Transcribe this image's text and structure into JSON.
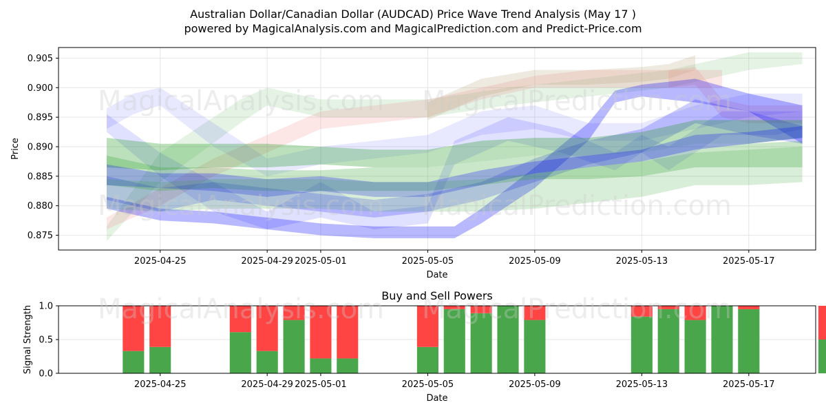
{
  "figure": {
    "title_line1": "Australian Dollar/Canadian Dollar (AUDCAD) Price Wave Trend Analysis (May 17 )",
    "title_line2": "powered by MagicalAnalysis.com and MagicalPrediction.com and Predict-Price.com",
    "watermark_1": "MagicalAnalysis.com",
    "watermark_2": "MagicalPrediction.com"
  },
  "colors": {
    "green": "#2ca02c",
    "blue": "#0000ff",
    "red": "#ff0000",
    "pink": "#f08080",
    "tan": "#b5a070",
    "buy": "#4aa64a",
    "sell": "#ff4444",
    "grid": "#e6e6e6"
  },
  "chart_data": [
    {
      "type": "area",
      "name": "price-wave-chart",
      "xlabel": "Date",
      "ylabel": "Price",
      "x_range_days": [
        -1.8,
        26.5
      ],
      "ylim": [
        0.8725,
        0.9068
      ],
      "x_ticks": [
        {
          "day": 2,
          "label": "2025-04-25"
        },
        {
          "day": 6,
          "label": "2025-04-29"
        },
        {
          "day": 8,
          "label": "2025-05-01"
        },
        {
          "day": 12,
          "label": "2025-05-05"
        },
        {
          "day": 16,
          "label": "2025-05-09"
        },
        {
          "day": 20,
          "label": "2025-05-13"
        },
        {
          "day": 24,
          "label": "2025-05-17"
        }
      ],
      "y_ticks": [
        0.875,
        0.88,
        0.885,
        0.89,
        0.895,
        0.9,
        0.905
      ],
      "grid": true,
      "day0": "2025-04-23",
      "bands": [
        {
          "name": "green-band-upper-light",
          "color": "green",
          "opacity": 0.12,
          "x": [
            0,
            2,
            5,
            6,
            8,
            12,
            15,
            17,
            19,
            21,
            22,
            24,
            26
          ],
          "lower": [
            0.874,
            0.884,
            0.894,
            0.897,
            0.895,
            0.895,
            0.897,
            0.898,
            0.899,
            0.9,
            0.901,
            0.903,
            0.904
          ],
          "upper": [
            0.8765,
            0.889,
            0.898,
            0.9,
            0.898,
            0.898,
            0.9,
            0.901,
            0.902,
            0.903,
            0.904,
            0.906,
            0.906
          ]
        },
        {
          "name": "pink-band",
          "color": "pink",
          "opacity": 0.2,
          "x": [
            0,
            2,
            4,
            6,
            7,
            8,
            10,
            12,
            14,
            16,
            18,
            20,
            22,
            23
          ],
          "lower": [
            0.876,
            0.88,
            0.885,
            0.889,
            0.891,
            0.893,
            0.894,
            0.895,
            0.898,
            0.9,
            0.9,
            0.9,
            0.9,
            0.9
          ],
          "upper": [
            0.878,
            0.883,
            0.888,
            0.892,
            0.894,
            0.896,
            0.897,
            0.898,
            0.9,
            0.902,
            0.903,
            0.903,
            0.903,
            0.903
          ]
        },
        {
          "name": "tan-band",
          "color": "tan",
          "opacity": 0.22,
          "x": [
            12,
            14,
            16,
            18,
            20,
            21,
            22
          ],
          "lower": [
            0.8945,
            0.8985,
            0.9005,
            0.9005,
            0.901,
            0.9015,
            0.903
          ],
          "upper": [
            0.8975,
            0.9015,
            0.903,
            0.903,
            0.9035,
            0.904,
            0.9055
          ]
        },
        {
          "name": "pink-band-tail",
          "color": "pink",
          "opacity": 0.2,
          "x": [
            21,
            22,
            23,
            24,
            25,
            26
          ],
          "lower": [
            0.9,
            0.9005,
            0.895,
            0.894,
            0.894,
            0.894
          ],
          "upper": [
            0.903,
            0.9035,
            0.898,
            0.897,
            0.897,
            0.897
          ]
        },
        {
          "name": "blue-band-light-top",
          "color": "blue",
          "opacity": 0.09,
          "x": [
            0,
            1,
            2,
            4,
            6,
            8,
            10,
            12,
            14,
            16,
            18,
            20,
            22,
            24,
            26
          ],
          "lower": [
            0.893,
            0.8955,
            0.897,
            0.89,
            0.885,
            0.887,
            0.888,
            0.889,
            0.892,
            0.893,
            0.891,
            0.891,
            0.893,
            0.895,
            0.896
          ],
          "upper": [
            0.8965,
            0.899,
            0.9,
            0.894,
            0.888,
            0.89,
            0.891,
            0.892,
            0.896,
            0.897,
            0.894,
            0.894,
            0.897,
            0.899,
            0.899
          ]
        },
        {
          "name": "blue-band-zigzag",
          "color": "blue",
          "opacity": 0.12,
          "x": [
            0,
            2,
            4,
            6,
            8,
            10,
            12,
            13,
            15,
            17,
            19,
            20,
            21,
            23,
            25,
            26
          ],
          "lower": [
            0.8925,
            0.885,
            0.879,
            0.876,
            0.878,
            0.876,
            0.877,
            0.887,
            0.891,
            0.889,
            0.886,
            0.889,
            0.886,
            0.892,
            0.892,
            0.893
          ],
          "upper": [
            0.8955,
            0.889,
            0.884,
            0.879,
            0.884,
            0.879,
            0.88,
            0.891,
            0.895,
            0.893,
            0.889,
            0.892,
            0.89,
            0.896,
            0.896,
            0.896
          ]
        },
        {
          "name": "blue-band-strong-rise",
          "color": "blue",
          "opacity": 0.28,
          "x": [
            0,
            2,
            4,
            6,
            8,
            10,
            12,
            13,
            14,
            16,
            18,
            19,
            20,
            22,
            24,
            26
          ],
          "lower": [
            0.8795,
            0.8775,
            0.877,
            0.876,
            0.875,
            0.8745,
            0.8745,
            0.8745,
            0.877,
            0.883,
            0.891,
            0.8975,
            0.8985,
            0.8975,
            0.896,
            0.8905
          ],
          "upper": [
            0.8815,
            0.8795,
            0.879,
            0.878,
            0.877,
            0.8765,
            0.8765,
            0.8765,
            0.8795,
            0.8865,
            0.894,
            0.8995,
            0.9005,
            0.9015,
            0.899,
            0.897
          ]
        },
        {
          "name": "blue-band-mid",
          "color": "blue",
          "opacity": 0.2,
          "x": [
            0,
            2,
            4,
            6,
            8,
            10,
            12,
            14,
            16,
            18,
            20,
            22,
            24,
            26
          ],
          "lower": [
            0.881,
            0.879,
            0.881,
            0.88,
            0.879,
            0.878,
            0.879,
            0.881,
            0.884,
            0.887,
            0.889,
            0.894,
            0.892,
            0.8905
          ],
          "upper": [
            0.885,
            0.883,
            0.884,
            0.883,
            0.882,
            0.881,
            0.882,
            0.884,
            0.888,
            0.891,
            0.893,
            0.898,
            0.896,
            0.8935
          ]
        },
        {
          "name": "green-band-upper",
          "color": "green",
          "opacity": 0.32,
          "x": [
            0,
            2,
            4,
            6,
            8,
            10,
            12,
            14,
            16,
            18,
            20,
            22,
            24,
            26
          ],
          "lower": [
            0.8865,
            0.886,
            0.8865,
            0.8865,
            0.887,
            0.8865,
            0.8865,
            0.8875,
            0.8885,
            0.8885,
            0.889,
            0.8905,
            0.8905,
            0.8915
          ],
          "upper": [
            0.8915,
            0.8905,
            0.8905,
            0.8905,
            0.89,
            0.8895,
            0.8895,
            0.891,
            0.8915,
            0.8915,
            0.8925,
            0.8945,
            0.8945,
            0.8945
          ]
        },
        {
          "name": "green-band-lower",
          "color": "green",
          "opacity": 0.25,
          "x": [
            0,
            2,
            4,
            6,
            8,
            10,
            12,
            14,
            16,
            18,
            20,
            22,
            24,
            26
          ],
          "lower": [
            0.8835,
            0.8825,
            0.883,
            0.8825,
            0.8825,
            0.8825,
            0.8825,
            0.8835,
            0.8845,
            0.8845,
            0.885,
            0.8865,
            0.8865,
            0.8865
          ],
          "upper": [
            0.8885,
            0.8865,
            0.8865,
            0.886,
            0.886,
            0.8865,
            0.8865,
            0.8875,
            0.8885,
            0.8885,
            0.889,
            0.8905,
            0.8905,
            0.891
          ]
        },
        {
          "name": "blue-band-dark",
          "color": "blue",
          "opacity": 0.25,
          "x": [
            0,
            2,
            4,
            6,
            8,
            10,
            12,
            14,
            16,
            18,
            20,
            22,
            24,
            26
          ],
          "lower": [
            0.8835,
            0.883,
            0.8825,
            0.8815,
            0.8825,
            0.8815,
            0.8815,
            0.8835,
            0.8855,
            0.8865,
            0.8875,
            0.8895,
            0.8905,
            0.8915
          ],
          "upper": [
            0.887,
            0.8855,
            0.8855,
            0.8845,
            0.885,
            0.884,
            0.884,
            0.886,
            0.8875,
            0.8885,
            0.8895,
            0.892,
            0.8925,
            0.8935
          ]
        },
        {
          "name": "green-band-wide",
          "color": "green",
          "opacity": 0.18,
          "x": [
            0,
            2,
            4,
            6,
            8,
            10,
            12,
            14,
            16,
            18,
            20,
            22,
            24,
            26
          ],
          "lower": [
            0.8795,
            0.879,
            0.8795,
            0.8795,
            0.8795,
            0.879,
            0.879,
            0.879,
            0.8795,
            0.8805,
            0.8815,
            0.8835,
            0.8835,
            0.884
          ],
          "upper": [
            0.8845,
            0.884,
            0.8845,
            0.8845,
            0.8845,
            0.884,
            0.884,
            0.8845,
            0.8855,
            0.8865,
            0.8875,
            0.889,
            0.8895,
            0.89
          ]
        }
      ]
    },
    {
      "type": "bar",
      "name": "buy-sell-powers-chart",
      "title": "Buy and Sell Powers",
      "xlabel": "Date",
      "ylabel": "Signal Strength",
      "ylim": [
        0,
        1
      ],
      "y_ticks": [
        "0.0",
        "0.5",
        "1.0"
      ],
      "x_ticks": [
        {
          "day": 2,
          "label": "2025-04-25"
        },
        {
          "day": 6,
          "label": "2025-04-29"
        },
        {
          "day": 8,
          "label": "2025-05-01"
        },
        {
          "day": 12,
          "label": "2025-05-05"
        },
        {
          "day": 16,
          "label": "2025-05-09"
        },
        {
          "day": 20,
          "label": "2025-05-13"
        },
        {
          "day": 24,
          "label": "2025-05-17"
        }
      ],
      "bar_days": [
        1,
        2,
        5,
        6,
        7,
        8,
        9,
        12,
        13,
        14,
        15,
        16,
        20,
        21,
        22,
        23,
        24,
        27
      ],
      "series": [
        {
          "name": "Buy",
          "color": "buy",
          "values": [
            0.33,
            0.39,
            0.61,
            0.33,
            0.79,
            0.22,
            0.22,
            0.39,
            0.95,
            0.89,
            1.0,
            0.79,
            0.84,
            0.95,
            0.79,
            1.0,
            0.95,
            0.5
          ]
        },
        {
          "name": "Sell",
          "color": "sell",
          "values": [
            0.67,
            0.61,
            0.39,
            0.67,
            0.21,
            0.78,
            0.78,
            0.61,
            0.05,
            0.11,
            0.0,
            0.21,
            0.16,
            0.05,
            0.21,
            0.0,
            0.05,
            0.5
          ]
        }
      ]
    }
  ]
}
